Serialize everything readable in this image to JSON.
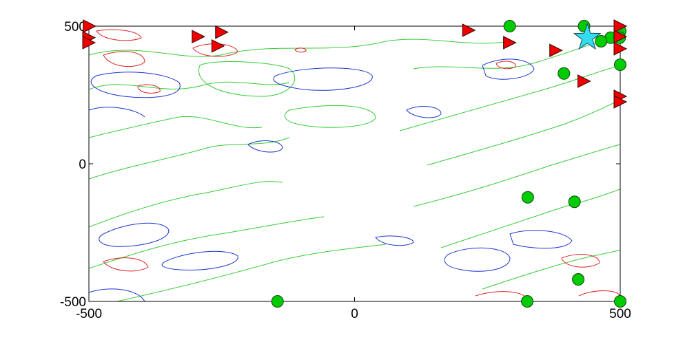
{
  "chart_data": {
    "type": "scatter",
    "xlim": [
      -500,
      500
    ],
    "ylim": [
      -500,
      500
    ],
    "xticks": [
      -500,
      0,
      500
    ],
    "yticks": [
      -500,
      0,
      500
    ],
    "series": [
      {
        "color": "#00cc00",
        "marker": "circle",
        "x": [
          292,
          432,
          500,
          482,
          464,
          499,
          394,
          500,
          326,
          414,
          421,
          -145,
          325,
          500
        ],
        "y": [
          500,
          500,
          482,
          458,
          445,
          458,
          328,
          360,
          -122,
          -138,
          -420,
          -500,
          -500,
          -500
        ]
      },
      {
        "color": "#ee0000",
        "marker": "triangle",
        "x": [
          -499,
          -500,
          -500,
          -294,
          -250,
          -257,
          215,
          292,
          379,
          432,
          500,
          500,
          500,
          500,
          500
        ],
        "y": [
          500,
          458,
          440,
          462,
          478,
          428,
          485,
          440,
          412,
          300,
          500,
          462,
          418,
          245,
          225
        ]
      },
      {
        "color": "#33ddee",
        "marker": "star",
        "x": [
          438
        ],
        "y": [
          458
        ]
      }
    ]
  }
}
